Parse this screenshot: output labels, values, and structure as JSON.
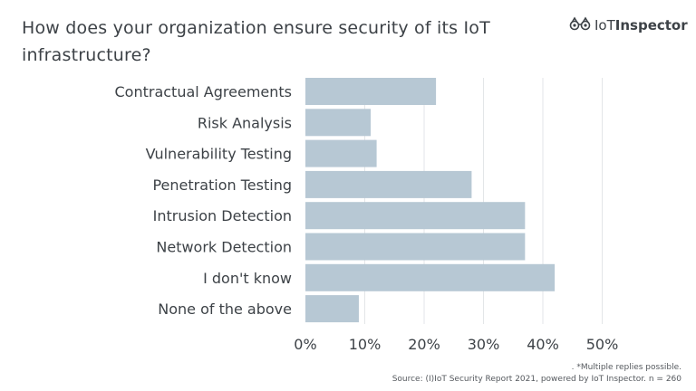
{
  "title": "How does your organization ensure security of its IoT infrastructure?",
  "logo": {
    "light": "IoT",
    "bold": "Inspector",
    "icon": "binoculars-icon"
  },
  "footnotes": {
    "line1": ". *Multiple replies possible.",
    "line2": "Source: (I)IoT Security Report 2021, powered by IoT Inspector. n = 260"
  },
  "colors": {
    "bar": "#b7c8d4",
    "grid": "#e3e6e8",
    "text": "#3d4247"
  },
  "chart_data": {
    "type": "bar",
    "orientation": "horizontal",
    "categories": [
      "Contractual Agreements",
      "Risk Analysis",
      "Vulnerability Testing",
      "Penetration Testing",
      "Intrusion Detection",
      "Network Detection",
      "I don't know",
      "None of the above"
    ],
    "values": [
      22,
      11,
      12,
      28,
      37,
      37,
      42,
      9
    ],
    "xlim": [
      0,
      50
    ],
    "xticks": [
      "0%",
      "10%",
      "20%",
      "30%",
      "40%",
      "50%"
    ],
    "xtick_values": [
      0,
      10,
      20,
      30,
      40,
      50
    ],
    "grid": true,
    "title": "How does your organization ensure security of its IoT infrastructure?",
    "xlabel": "",
    "ylabel": ""
  }
}
